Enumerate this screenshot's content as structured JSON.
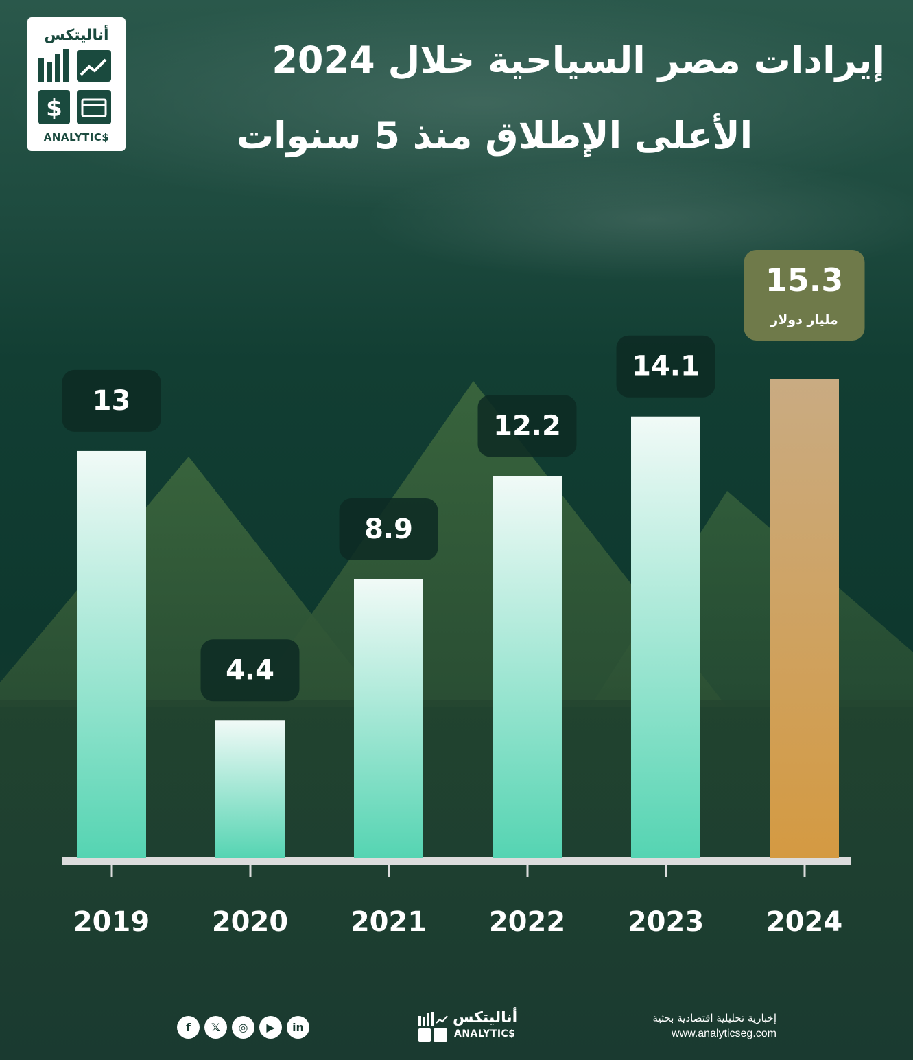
{
  "brand": {
    "logo_ar": "أناليتكس",
    "logo_en": "ANALYTIC$"
  },
  "title": {
    "line1": "إيرادات مصر السياحية خلال 2024",
    "line2": "الأعلى الإطلاق منذ 5 سنوات"
  },
  "chart_data": {
    "type": "bar",
    "categories": [
      "2019",
      "2020",
      "2021",
      "2022",
      "2023",
      "2024"
    ],
    "values": [
      13,
      4.4,
      8.9,
      12.2,
      14.1,
      15.3
    ],
    "data_labels": [
      "13",
      "4.4",
      "8.9",
      "12.2",
      "14.1",
      "15.3"
    ],
    "unit_label": "مليار دولار",
    "highlight_index": 5,
    "ylim": [
      0,
      15.3
    ],
    "colors": {
      "bar_top": "#f1faf7",
      "bar_bottom": "#55d4b2",
      "highlight_top": "#c9ab82",
      "highlight_bottom": "#d49a42",
      "label_box": "#0d2a23",
      "highlight_box": "#6f7a4a",
      "baseline": "#dcdcdc"
    },
    "title": "",
    "xlabel": "",
    "ylabel": "",
    "grid": false
  },
  "footer": {
    "social": [
      {
        "icon": "facebook-icon",
        "glyph": "f"
      },
      {
        "icon": "x-icon",
        "glyph": "𝕏"
      },
      {
        "icon": "instagram-icon",
        "glyph": "◎"
      },
      {
        "icon": "youtube-icon",
        "glyph": "▶"
      },
      {
        "icon": "linkedin-icon",
        "glyph": "in"
      }
    ],
    "logo_ar": "أناليتكس",
    "logo_en": "ANALYTIC$",
    "tagline": "إخبارية تحليلية اقتصادية بحثية",
    "url": "www.analyticseg.com"
  }
}
